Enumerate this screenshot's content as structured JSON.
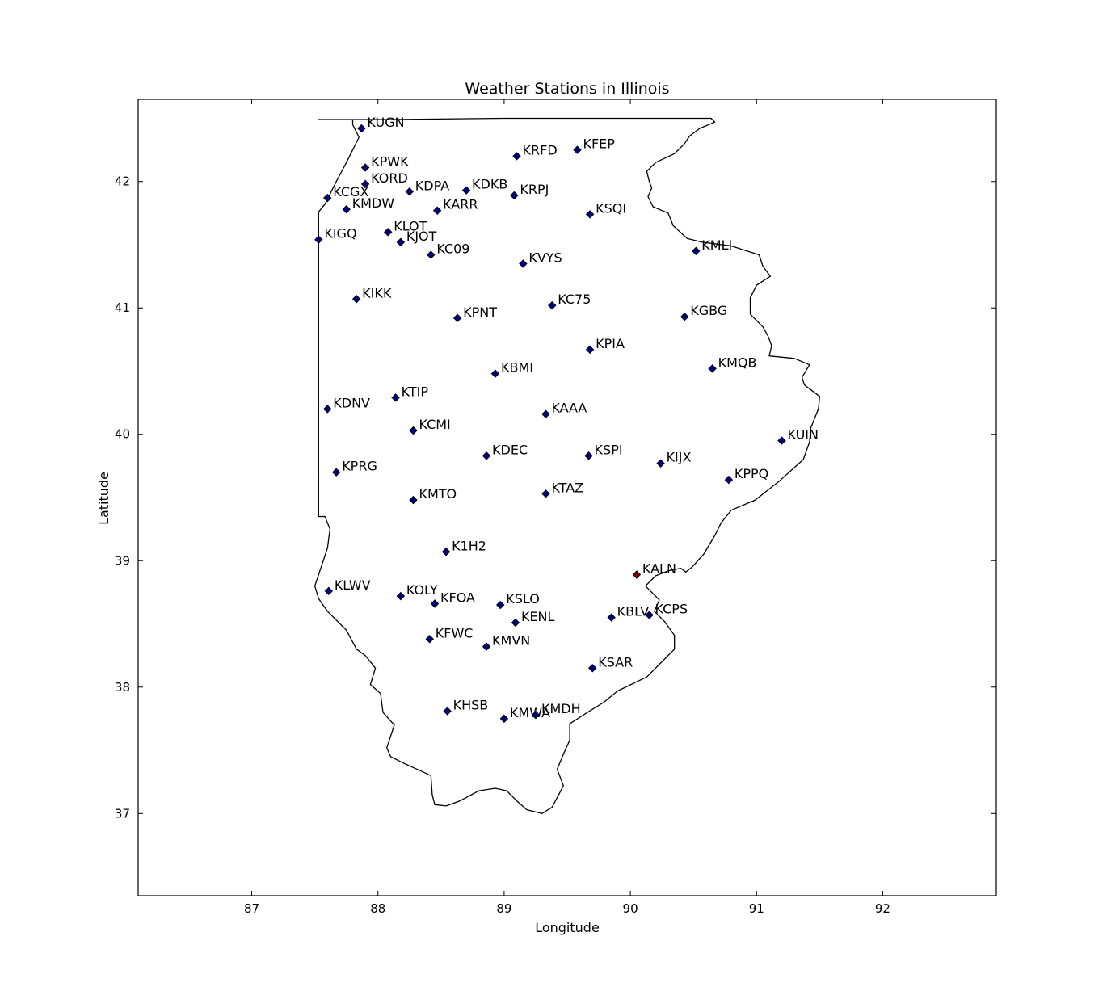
{
  "chart_data": {
    "type": "scatter",
    "title": "Weather Stations in Illinois",
    "xlabel": "Longitude",
    "ylabel": "Latitude",
    "xlim": [
      86.1,
      92.9
    ],
    "ylim": [
      36.35,
      42.65
    ],
    "xticks": [
      87,
      88,
      89,
      90,
      91,
      92
    ],
    "yticks": [
      37,
      38,
      39,
      40,
      41,
      42
    ],
    "grid": false,
    "colors": {
      "marker": "#000080",
      "highlight": "#7f0000",
      "outline": "#000000"
    },
    "points": [
      {
        "label": "KUGN",
        "x": 87.87,
        "y": 42.42
      },
      {
        "label": "KRFD",
        "x": 89.1,
        "y": 42.2
      },
      {
        "label": "KFEP",
        "x": 89.58,
        "y": 42.25
      },
      {
        "label": "KPWK",
        "x": 87.9,
        "y": 42.11
      },
      {
        "label": "KORD",
        "x": 87.9,
        "y": 41.98
      },
      {
        "label": "KCGX",
        "x": 87.6,
        "y": 41.87
      },
      {
        "label": "KDPA",
        "x": 88.25,
        "y": 41.92
      },
      {
        "label": "KDKB",
        "x": 88.7,
        "y": 41.93
      },
      {
        "label": "KRPJ",
        "x": 89.08,
        "y": 41.89
      },
      {
        "label": "KMDW",
        "x": 87.75,
        "y": 41.78
      },
      {
        "label": "KARR",
        "x": 88.47,
        "y": 41.77
      },
      {
        "label": "KSQI",
        "x": 89.68,
        "y": 41.74
      },
      {
        "label": "KIGQ",
        "x": 87.53,
        "y": 41.54
      },
      {
        "label": "KLOT",
        "x": 88.08,
        "y": 41.6
      },
      {
        "label": "KJOT",
        "x": 88.18,
        "y": 41.52
      },
      {
        "label": "KC09",
        "x": 88.42,
        "y": 41.42
      },
      {
        "label": "KVYS",
        "x": 89.15,
        "y": 41.35
      },
      {
        "label": "KMLI",
        "x": 90.52,
        "y": 41.45
      },
      {
        "label": "KIKK",
        "x": 87.83,
        "y": 41.07
      },
      {
        "label": "KPNT",
        "x": 88.63,
        "y": 40.92
      },
      {
        "label": "KC75",
        "x": 89.38,
        "y": 41.02
      },
      {
        "label": "KGBG",
        "x": 90.43,
        "y": 40.93
      },
      {
        "label": "KPIA",
        "x": 89.68,
        "y": 40.67
      },
      {
        "label": "KBMI",
        "x": 88.93,
        "y": 40.48
      },
      {
        "label": "KMQB",
        "x": 90.65,
        "y": 40.52
      },
      {
        "label": "KDNV",
        "x": 87.6,
        "y": 40.2
      },
      {
        "label": "KTIP",
        "x": 88.14,
        "y": 40.29
      },
      {
        "label": "KAAA",
        "x": 89.33,
        "y": 40.16
      },
      {
        "label": "KCMI",
        "x": 88.28,
        "y": 40.03
      },
      {
        "label": "KUIN",
        "x": 91.2,
        "y": 39.95
      },
      {
        "label": "KDEC",
        "x": 88.86,
        "y": 39.83
      },
      {
        "label": "KSPI",
        "x": 89.67,
        "y": 39.83
      },
      {
        "label": "KIJX",
        "x": 90.24,
        "y": 39.77
      },
      {
        "label": "KPRG",
        "x": 87.67,
        "y": 39.7
      },
      {
        "label": "KPPQ",
        "x": 90.78,
        "y": 39.64
      },
      {
        "label": "KTAZ",
        "x": 89.33,
        "y": 39.53
      },
      {
        "label": "KMTO",
        "x": 88.28,
        "y": 39.48
      },
      {
        "label": "K1H2",
        "x": 88.54,
        "y": 39.07
      },
      {
        "label": "KALN",
        "x": 90.05,
        "y": 38.89,
        "highlight": true
      },
      {
        "label": "KLWV",
        "x": 87.61,
        "y": 38.76
      },
      {
        "label": "KOLY",
        "x": 88.18,
        "y": 38.72
      },
      {
        "label": "KFOA",
        "x": 88.45,
        "y": 38.66
      },
      {
        "label": "KSLO",
        "x": 88.97,
        "y": 38.65
      },
      {
        "label": "KENL",
        "x": 89.09,
        "y": 38.51
      },
      {
        "label": "KBLV",
        "x": 89.85,
        "y": 38.55
      },
      {
        "label": "KCPS",
        "x": 90.15,
        "y": 38.57
      },
      {
        "label": "KFWC",
        "x": 88.41,
        "y": 38.38
      },
      {
        "label": "KMVN",
        "x": 88.86,
        "y": 38.32
      },
      {
        "label": "KSAR",
        "x": 89.7,
        "y": 38.15
      },
      {
        "label": "KHSB",
        "x": 88.55,
        "y": 37.81
      },
      {
        "label": "KMWA",
        "x": 89.0,
        "y": 37.75
      },
      {
        "label": "KMDH",
        "x": 89.25,
        "y": 37.78
      }
    ],
    "outline": [
      [
        87.53,
        42.49
      ],
      [
        88.1,
        42.49
      ],
      [
        89.0,
        42.5
      ],
      [
        89.9,
        42.5
      ],
      [
        90.64,
        42.5
      ],
      [
        90.67,
        42.47
      ],
      [
        90.55,
        42.42
      ],
      [
        90.47,
        42.36
      ],
      [
        90.43,
        42.3
      ],
      [
        90.35,
        42.22
      ],
      [
        90.2,
        42.15
      ],
      [
        90.13,
        42.08
      ],
      [
        90.15,
        42.0
      ],
      [
        90.17,
        41.95
      ],
      [
        90.14,
        41.88
      ],
      [
        90.18,
        41.8
      ],
      [
        90.3,
        41.75
      ],
      [
        90.34,
        41.65
      ],
      [
        90.45,
        41.55
      ],
      [
        90.57,
        41.52
      ],
      [
        90.8,
        41.49
      ],
      [
        91.02,
        41.42
      ],
      [
        91.05,
        41.33
      ],
      [
        91.11,
        41.25
      ],
      [
        91.0,
        41.18
      ],
      [
        90.95,
        41.08
      ],
      [
        90.95,
        40.95
      ],
      [
        91.05,
        40.85
      ],
      [
        91.09,
        40.78
      ],
      [
        91.12,
        40.7
      ],
      [
        91.1,
        40.62
      ],
      [
        91.3,
        40.6
      ],
      [
        91.42,
        40.55
      ],
      [
        91.36,
        40.45
      ],
      [
        91.38,
        40.39
      ],
      [
        91.5,
        40.3
      ],
      [
        91.49,
        40.2
      ],
      [
        91.43,
        40.05
      ],
      [
        91.42,
        39.94
      ],
      [
        91.37,
        39.8
      ],
      [
        91.18,
        39.63
      ],
      [
        90.99,
        39.48
      ],
      [
        90.8,
        39.4
      ],
      [
        90.72,
        39.3
      ],
      [
        90.67,
        39.2
      ],
      [
        90.58,
        39.05
      ],
      [
        90.49,
        38.95
      ],
      [
        90.44,
        38.91
      ],
      [
        90.4,
        38.94
      ],
      [
        90.3,
        38.92
      ],
      [
        90.2,
        38.88
      ],
      [
        90.12,
        38.8
      ],
      [
        90.17,
        38.75
      ],
      [
        90.23,
        38.69
      ],
      [
        90.19,
        38.6
      ],
      [
        90.27,
        38.52
      ],
      [
        90.35,
        38.41
      ],
      [
        90.35,
        38.3
      ],
      [
        90.25,
        38.2
      ],
      [
        90.13,
        38.08
      ],
      [
        89.9,
        37.97
      ],
      [
        89.79,
        37.88
      ],
      [
        89.66,
        37.8
      ],
      [
        89.52,
        37.71
      ],
      [
        89.52,
        37.58
      ],
      [
        89.47,
        37.47
      ],
      [
        89.42,
        37.35
      ],
      [
        89.47,
        37.22
      ],
      [
        89.38,
        37.05
      ],
      [
        89.3,
        37.0
      ],
      [
        89.18,
        37.03
      ],
      [
        89.1,
        37.1
      ],
      [
        89.02,
        37.18
      ],
      [
        88.93,
        37.2
      ],
      [
        88.8,
        37.18
      ],
      [
        88.65,
        37.1
      ],
      [
        88.54,
        37.06
      ],
      [
        88.45,
        37.07
      ],
      [
        88.43,
        37.15
      ],
      [
        88.42,
        37.3
      ],
      [
        88.2,
        37.4
      ],
      [
        88.1,
        37.45
      ],
      [
        88.07,
        37.52
      ],
      [
        88.13,
        37.7
      ],
      [
        88.04,
        37.8
      ],
      [
        88.02,
        37.95
      ],
      [
        87.94,
        38.02
      ],
      [
        87.98,
        38.15
      ],
      [
        87.9,
        38.25
      ],
      [
        87.83,
        38.3
      ],
      [
        87.75,
        38.45
      ],
      [
        87.6,
        38.6
      ],
      [
        87.53,
        38.7
      ],
      [
        87.5,
        38.8
      ],
      [
        87.55,
        38.95
      ],
      [
        87.6,
        39.1
      ],
      [
        87.62,
        39.25
      ],
      [
        87.58,
        39.35
      ],
      [
        87.53,
        39.35
      ],
      [
        87.53,
        40.0
      ],
      [
        87.53,
        41.0
      ],
      [
        87.53,
        41.76
      ],
      [
        87.58,
        41.82
      ],
      [
        87.62,
        41.9
      ],
      [
        87.67,
        42.0
      ],
      [
        87.75,
        42.15
      ],
      [
        87.8,
        42.25
      ],
      [
        87.85,
        42.35
      ],
      [
        87.8,
        42.45
      ],
      [
        87.8,
        42.49
      ],
      [
        87.53,
        42.49
      ]
    ]
  }
}
